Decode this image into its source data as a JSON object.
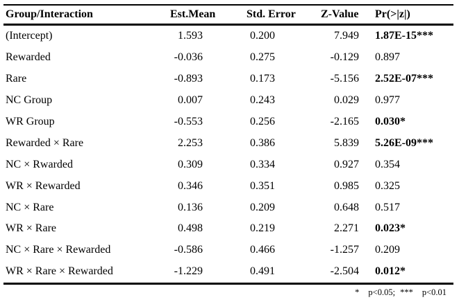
{
  "table": {
    "headers": [
      "Group/Interaction",
      "Est.Mean",
      "Std. Error",
      "Z-Value",
      "Pr(>|z|)"
    ],
    "rows": [
      {
        "label": "(Intercept)",
        "est": "1.593",
        "se": "0.200",
        "z": "7.949",
        "p": "1.87E-15***",
        "sig": true
      },
      {
        "label": "Rewarded",
        "est": "-0.036",
        "se": "0.275",
        "z": "-0.129",
        "p": "0.897",
        "sig": false
      },
      {
        "label": "Rare",
        "est": "-0.893",
        "se": "0.173",
        "z": "-5.156",
        "p": "2.52E-07***",
        "sig": true
      },
      {
        "label": "NC Group",
        "est": "0.007",
        "se": "0.243",
        "z": "0.029",
        "p": "0.977",
        "sig": false
      },
      {
        "label": "WR Group",
        "est": "-0.553",
        "se": "0.256",
        "z": "-2.165",
        "p": "0.030*",
        "sig": true
      },
      {
        "label": "Rewarded × Rare",
        "est": "2.253",
        "se": "0.386",
        "z": "5.839",
        "p": "5.26E-09***",
        "sig": true
      },
      {
        "label": "NC × Rwarded",
        "est": "0.309",
        "se": "0.334",
        "z": "0.927",
        "p": "0.354",
        "sig": false
      },
      {
        "label": "WR × Rewarded",
        "est": "0.346",
        "se": "0.351",
        "z": "0.985",
        "p": "0.325",
        "sig": false
      },
      {
        "label": "NC × Rare",
        "est": "0.136",
        "se": "0.209",
        "z": "0.648",
        "p": "0.517",
        "sig": false
      },
      {
        "label": "WR × Rare",
        "est": "0.498",
        "se": "0.219",
        "z": "2.271",
        "p": "0.023*",
        "sig": true
      },
      {
        "label": "NC × Rare × Rewarded",
        "est": "-0.586",
        "se": "0.466",
        "z": "-1.257",
        "p": "0.209",
        "sig": false
      },
      {
        "label": "WR × Rare × Rewarded",
        "est": "-1.229",
        "se": "0.491",
        "z": "-2.504",
        "p": "0.012*",
        "sig": true
      }
    ],
    "footnote": {
      "sig1_symbol": "*",
      "sig1_text": "p<0.05;",
      "sig2_symbol": "***",
      "sig2_text": "p<0.01"
    }
  },
  "colors": {
    "text": "#000000",
    "background": "#ffffff",
    "rule": "#000000"
  }
}
